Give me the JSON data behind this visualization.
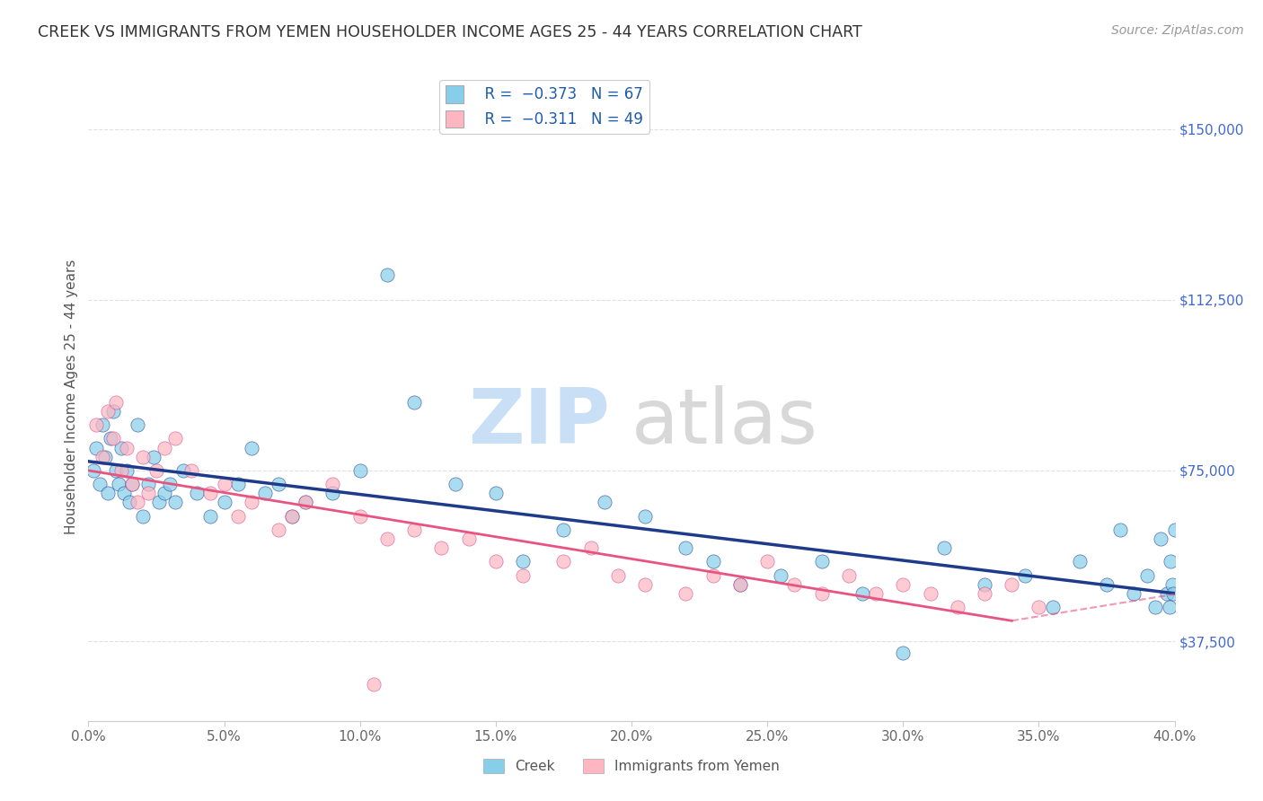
{
  "title": "CREEK VS IMMIGRANTS FROM YEMEN HOUSEHOLDER INCOME AGES 25 - 44 YEARS CORRELATION CHART",
  "source_text": "Source: ZipAtlas.com",
  "ylabel": "Householder Income Ages 25 - 44 years",
  "xlim": [
    0.0,
    40.0
  ],
  "ylim": [
    20000,
    162500
  ],
  "yticks": [
    37500,
    75000,
    112500,
    150000
  ],
  "ytick_labels": [
    "$37,500",
    "$75,000",
    "$112,500",
    "$150,000"
  ],
  "xtick_vals": [
    0,
    5,
    10,
    15,
    20,
    25,
    30,
    35,
    40
  ],
  "creek_color": "#87CEEB",
  "yemen_color": "#FFB6C1",
  "creek_line_color": "#1E3A8A",
  "yemen_line_color": "#E75480",
  "watermark_zip": "ZIP",
  "watermark_atlas": "atlas",
  "legend_creek_r": "R =  −0.373",
  "legend_creek_n": "N = 67",
  "legend_yemen_r": "R =  −0.311",
  "legend_yemen_n": "N = 49",
  "creek_scatter_x": [
    0.2,
    0.3,
    0.4,
    0.5,
    0.6,
    0.7,
    0.8,
    0.9,
    1.0,
    1.1,
    1.2,
    1.3,
    1.4,
    1.5,
    1.6,
    1.8,
    2.0,
    2.2,
    2.4,
    2.6,
    2.8,
    3.0,
    3.2,
    3.5,
    4.0,
    4.5,
    5.0,
    5.5,
    6.0,
    6.5,
    7.0,
    7.5,
    8.0,
    9.0,
    10.0,
    11.0,
    12.0,
    13.5,
    15.0,
    16.0,
    17.5,
    19.0,
    20.5,
    22.0,
    23.0,
    24.0,
    25.5,
    27.0,
    28.5,
    30.0,
    31.5,
    33.0,
    34.5,
    35.5,
    36.5,
    37.5,
    38.0,
    38.5,
    39.0,
    39.3,
    39.5,
    39.7,
    39.8,
    39.85,
    39.9,
    39.95,
    40.0
  ],
  "creek_scatter_y": [
    75000,
    80000,
    72000,
    85000,
    78000,
    70000,
    82000,
    88000,
    75000,
    72000,
    80000,
    70000,
    75000,
    68000,
    72000,
    85000,
    65000,
    72000,
    78000,
    68000,
    70000,
    72000,
    68000,
    75000,
    70000,
    65000,
    68000,
    72000,
    80000,
    70000,
    72000,
    65000,
    68000,
    70000,
    75000,
    118000,
    90000,
    72000,
    70000,
    55000,
    62000,
    68000,
    65000,
    58000,
    55000,
    50000,
    52000,
    55000,
    48000,
    35000,
    58000,
    50000,
    52000,
    45000,
    55000,
    50000,
    62000,
    48000,
    52000,
    45000,
    60000,
    48000,
    45000,
    55000,
    50000,
    48000,
    62000
  ],
  "yemen_scatter_x": [
    0.3,
    0.5,
    0.7,
    0.9,
    1.0,
    1.2,
    1.4,
    1.6,
    1.8,
    2.0,
    2.2,
    2.5,
    2.8,
    3.2,
    3.8,
    4.5,
    5.0,
    5.5,
    6.0,
    7.0,
    7.5,
    8.0,
    9.0,
    10.0,
    11.0,
    12.0,
    13.0,
    14.0,
    15.0,
    16.0,
    17.5,
    18.5,
    19.5,
    20.5,
    22.0,
    23.0,
    24.0,
    25.0,
    26.0,
    27.0,
    28.0,
    29.0,
    30.0,
    31.0,
    32.0,
    33.0,
    34.0,
    35.0,
    10.5
  ],
  "yemen_scatter_y": [
    85000,
    78000,
    88000,
    82000,
    90000,
    75000,
    80000,
    72000,
    68000,
    78000,
    70000,
    75000,
    80000,
    82000,
    75000,
    70000,
    72000,
    65000,
    68000,
    62000,
    65000,
    68000,
    72000,
    65000,
    60000,
    62000,
    58000,
    60000,
    55000,
    52000,
    55000,
    58000,
    52000,
    50000,
    48000,
    52000,
    50000,
    55000,
    50000,
    48000,
    52000,
    48000,
    50000,
    48000,
    45000,
    48000,
    50000,
    45000,
    28000
  ],
  "grid_color": "#e0e0e0",
  "bg_color": "#ffffff",
  "title_color": "#333333",
  "source_color": "#999999",
  "ylabel_color": "#555555",
  "ytick_color": "#4169CD",
  "creek_trendline": [
    0.0,
    40.0,
    77000,
    48000
  ],
  "yemen_trendline": [
    0.0,
    34.0,
    75000,
    42000
  ]
}
